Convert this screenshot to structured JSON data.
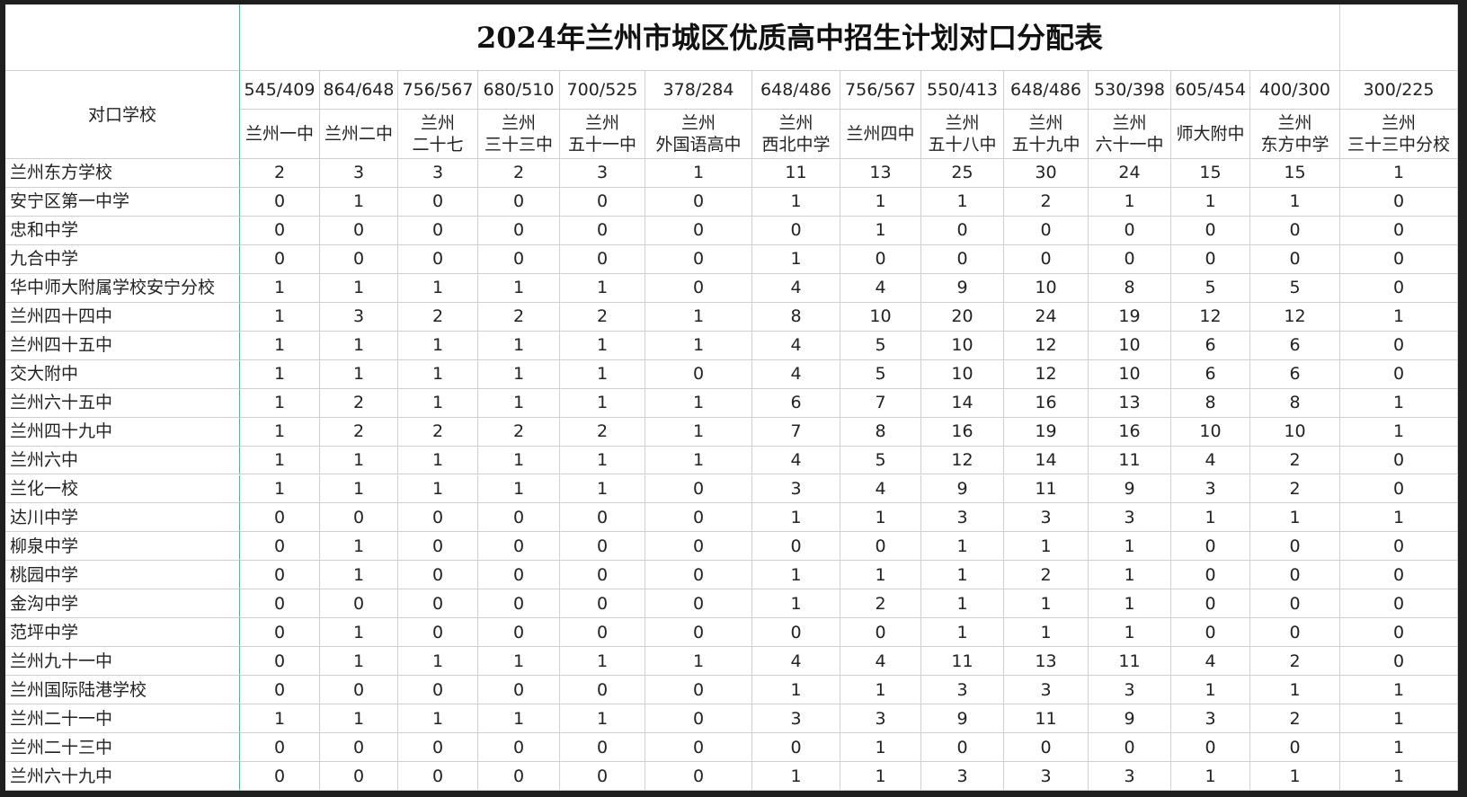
{
  "title": "2024年兰州市城区优质高中招生计划对口分配表",
  "header": "对口学校",
  "columns": [
    {
      "quota": "545/409",
      "name": [
        "兰州一中"
      ]
    },
    {
      "quota": "864/648",
      "name": [
        "兰州二中"
      ]
    },
    {
      "quota": "756/567",
      "name": [
        "兰州",
        "二十七"
      ]
    },
    {
      "quota": "680/510",
      "name": [
        "兰州",
        "三十三中"
      ]
    },
    {
      "quota": "700/525",
      "name": [
        "兰州",
        "五十一中"
      ]
    },
    {
      "quota": "378/284",
      "name": [
        "兰州",
        "外国语高中"
      ]
    },
    {
      "quota": "648/486",
      "name": [
        "兰州",
        "西北中学"
      ]
    },
    {
      "quota": "756/567",
      "name": [
        "兰州四中"
      ]
    },
    {
      "quota": "550/413",
      "name": [
        "兰州",
        "五十八中"
      ]
    },
    {
      "quota": "648/486",
      "name": [
        "兰州",
        "五十九中"
      ]
    },
    {
      "quota": "530/398",
      "name": [
        "兰州",
        "六十一中"
      ]
    },
    {
      "quota": "605/454",
      "name": [
        "师大附中"
      ]
    },
    {
      "quota": "400/300",
      "name": [
        "兰州",
        "东方中学"
      ]
    },
    {
      "quota": "300/225",
      "name": [
        "兰州",
        "三十三中分校"
      ]
    }
  ],
  "rows": [
    {
      "name": "兰州东方学校",
      "values": [
        2,
        3,
        3,
        2,
        3,
        1,
        11,
        13,
        25,
        30,
        24,
        15,
        15,
        1
      ]
    },
    {
      "name": "安宁区第一中学",
      "values": [
        0,
        1,
        0,
        0,
        0,
        0,
        1,
        1,
        1,
        2,
        1,
        1,
        1,
        0
      ]
    },
    {
      "name": "忠和中学",
      "values": [
        0,
        0,
        0,
        0,
        0,
        0,
        0,
        1,
        0,
        0,
        0,
        0,
        0,
        0
      ]
    },
    {
      "name": "九合中学",
      "values": [
        0,
        0,
        0,
        0,
        0,
        0,
        1,
        0,
        0,
        0,
        0,
        0,
        0,
        0
      ]
    },
    {
      "name": "华中师大附属学校安宁分校",
      "values": [
        1,
        1,
        1,
        1,
        1,
        0,
        4,
        4,
        9,
        10,
        8,
        5,
        5,
        0
      ]
    },
    {
      "name": "兰州四十四中",
      "values": [
        1,
        3,
        2,
        2,
        2,
        1,
        8,
        10,
        20,
        24,
        19,
        12,
        12,
        1
      ]
    },
    {
      "name": "兰州四十五中",
      "values": [
        1,
        1,
        1,
        1,
        1,
        1,
        4,
        5,
        10,
        12,
        10,
        6,
        6,
        0
      ]
    },
    {
      "name": "交大附中",
      "values": [
        1,
        1,
        1,
        1,
        1,
        0,
        4,
        5,
        10,
        12,
        10,
        6,
        6,
        0
      ]
    },
    {
      "name": "兰州六十五中",
      "values": [
        1,
        2,
        1,
        1,
        1,
        1,
        6,
        7,
        14,
        16,
        13,
        8,
        8,
        1
      ]
    },
    {
      "name": "兰州四十九中",
      "values": [
        1,
        2,
        2,
        2,
        2,
        1,
        7,
        8,
        16,
        19,
        16,
        10,
        10,
        1
      ]
    },
    {
      "name": "兰州六中",
      "values": [
        1,
        1,
        1,
        1,
        1,
        1,
        4,
        5,
        12,
        14,
        11,
        4,
        2,
        0
      ]
    },
    {
      "name": "兰化一校",
      "values": [
        1,
        1,
        1,
        1,
        1,
        0,
        3,
        4,
        9,
        11,
        9,
        3,
        2,
        0
      ]
    },
    {
      "name": "达川中学",
      "values": [
        0,
        0,
        0,
        0,
        0,
        0,
        1,
        1,
        3,
        3,
        3,
        1,
        1,
        1
      ]
    },
    {
      "name": "柳泉中学",
      "values": [
        0,
        1,
        0,
        0,
        0,
        0,
        0,
        0,
        1,
        1,
        1,
        0,
        0,
        0
      ]
    },
    {
      "name": "桃园中学",
      "values": [
        0,
        1,
        0,
        0,
        0,
        0,
        1,
        1,
        1,
        2,
        1,
        0,
        0,
        0
      ]
    },
    {
      "name": "金沟中学",
      "values": [
        0,
        0,
        0,
        0,
        0,
        0,
        1,
        2,
        1,
        1,
        1,
        0,
        0,
        0
      ]
    },
    {
      "name": "范坪中学",
      "values": [
        0,
        1,
        0,
        0,
        0,
        0,
        0,
        0,
        1,
        1,
        1,
        0,
        0,
        0
      ]
    },
    {
      "name": "兰州九十一中",
      "values": [
        0,
        1,
        1,
        1,
        1,
        1,
        4,
        4,
        11,
        13,
        11,
        4,
        2,
        0
      ]
    },
    {
      "name": "兰州国际陆港学校",
      "values": [
        0,
        0,
        0,
        0,
        0,
        0,
        1,
        1,
        3,
        3,
        3,
        1,
        1,
        1
      ]
    },
    {
      "name": "兰州二十一中",
      "values": [
        1,
        1,
        1,
        1,
        1,
        0,
        3,
        3,
        9,
        11,
        9,
        3,
        2,
        1
      ]
    },
    {
      "name": "兰州二十三中",
      "values": [
        0,
        0,
        0,
        0,
        0,
        0,
        0,
        1,
        0,
        0,
        0,
        0,
        0,
        1
      ]
    },
    {
      "name": "兰州六十九中",
      "values": [
        0,
        0,
        0,
        0,
        0,
        0,
        1,
        1,
        3,
        3,
        3,
        1,
        1,
        1
      ]
    }
  ]
}
